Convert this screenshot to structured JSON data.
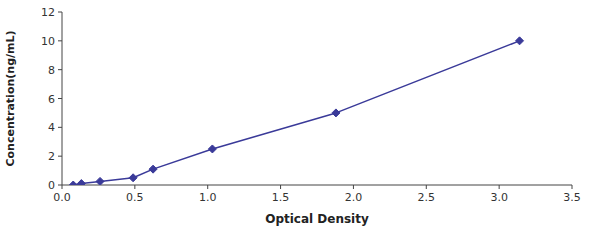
{
  "chart_data": {
    "type": "line",
    "x": [
      0.077,
      0.133,
      0.261,
      0.488,
      0.625,
      1.032,
      1.88,
      3.14
    ],
    "values": [
      0.0,
      0.1,
      0.25,
      0.5,
      1.1,
      2.5,
      5.0,
      10.0
    ],
    "color": "#3a3a99",
    "marker": "diamond",
    "xlabel": "Optical Density",
    "ylabel": "Concentration(ng/mL)",
    "xlim": [
      0,
      3.5
    ],
    "ylim": [
      0,
      12
    ],
    "xticks": [
      {
        "value": 0,
        "label": "0.0"
      },
      0.5,
      {
        "value": 1,
        "label": "1.0"
      },
      1.5,
      {
        "value": 2,
        "label": "2.0"
      },
      2.5,
      {
        "value": 3,
        "label": "3.0"
      },
      3.5
    ],
    "yticks": [
      0,
      2,
      4,
      6,
      8,
      10,
      12
    ],
    "grid": false
  }
}
